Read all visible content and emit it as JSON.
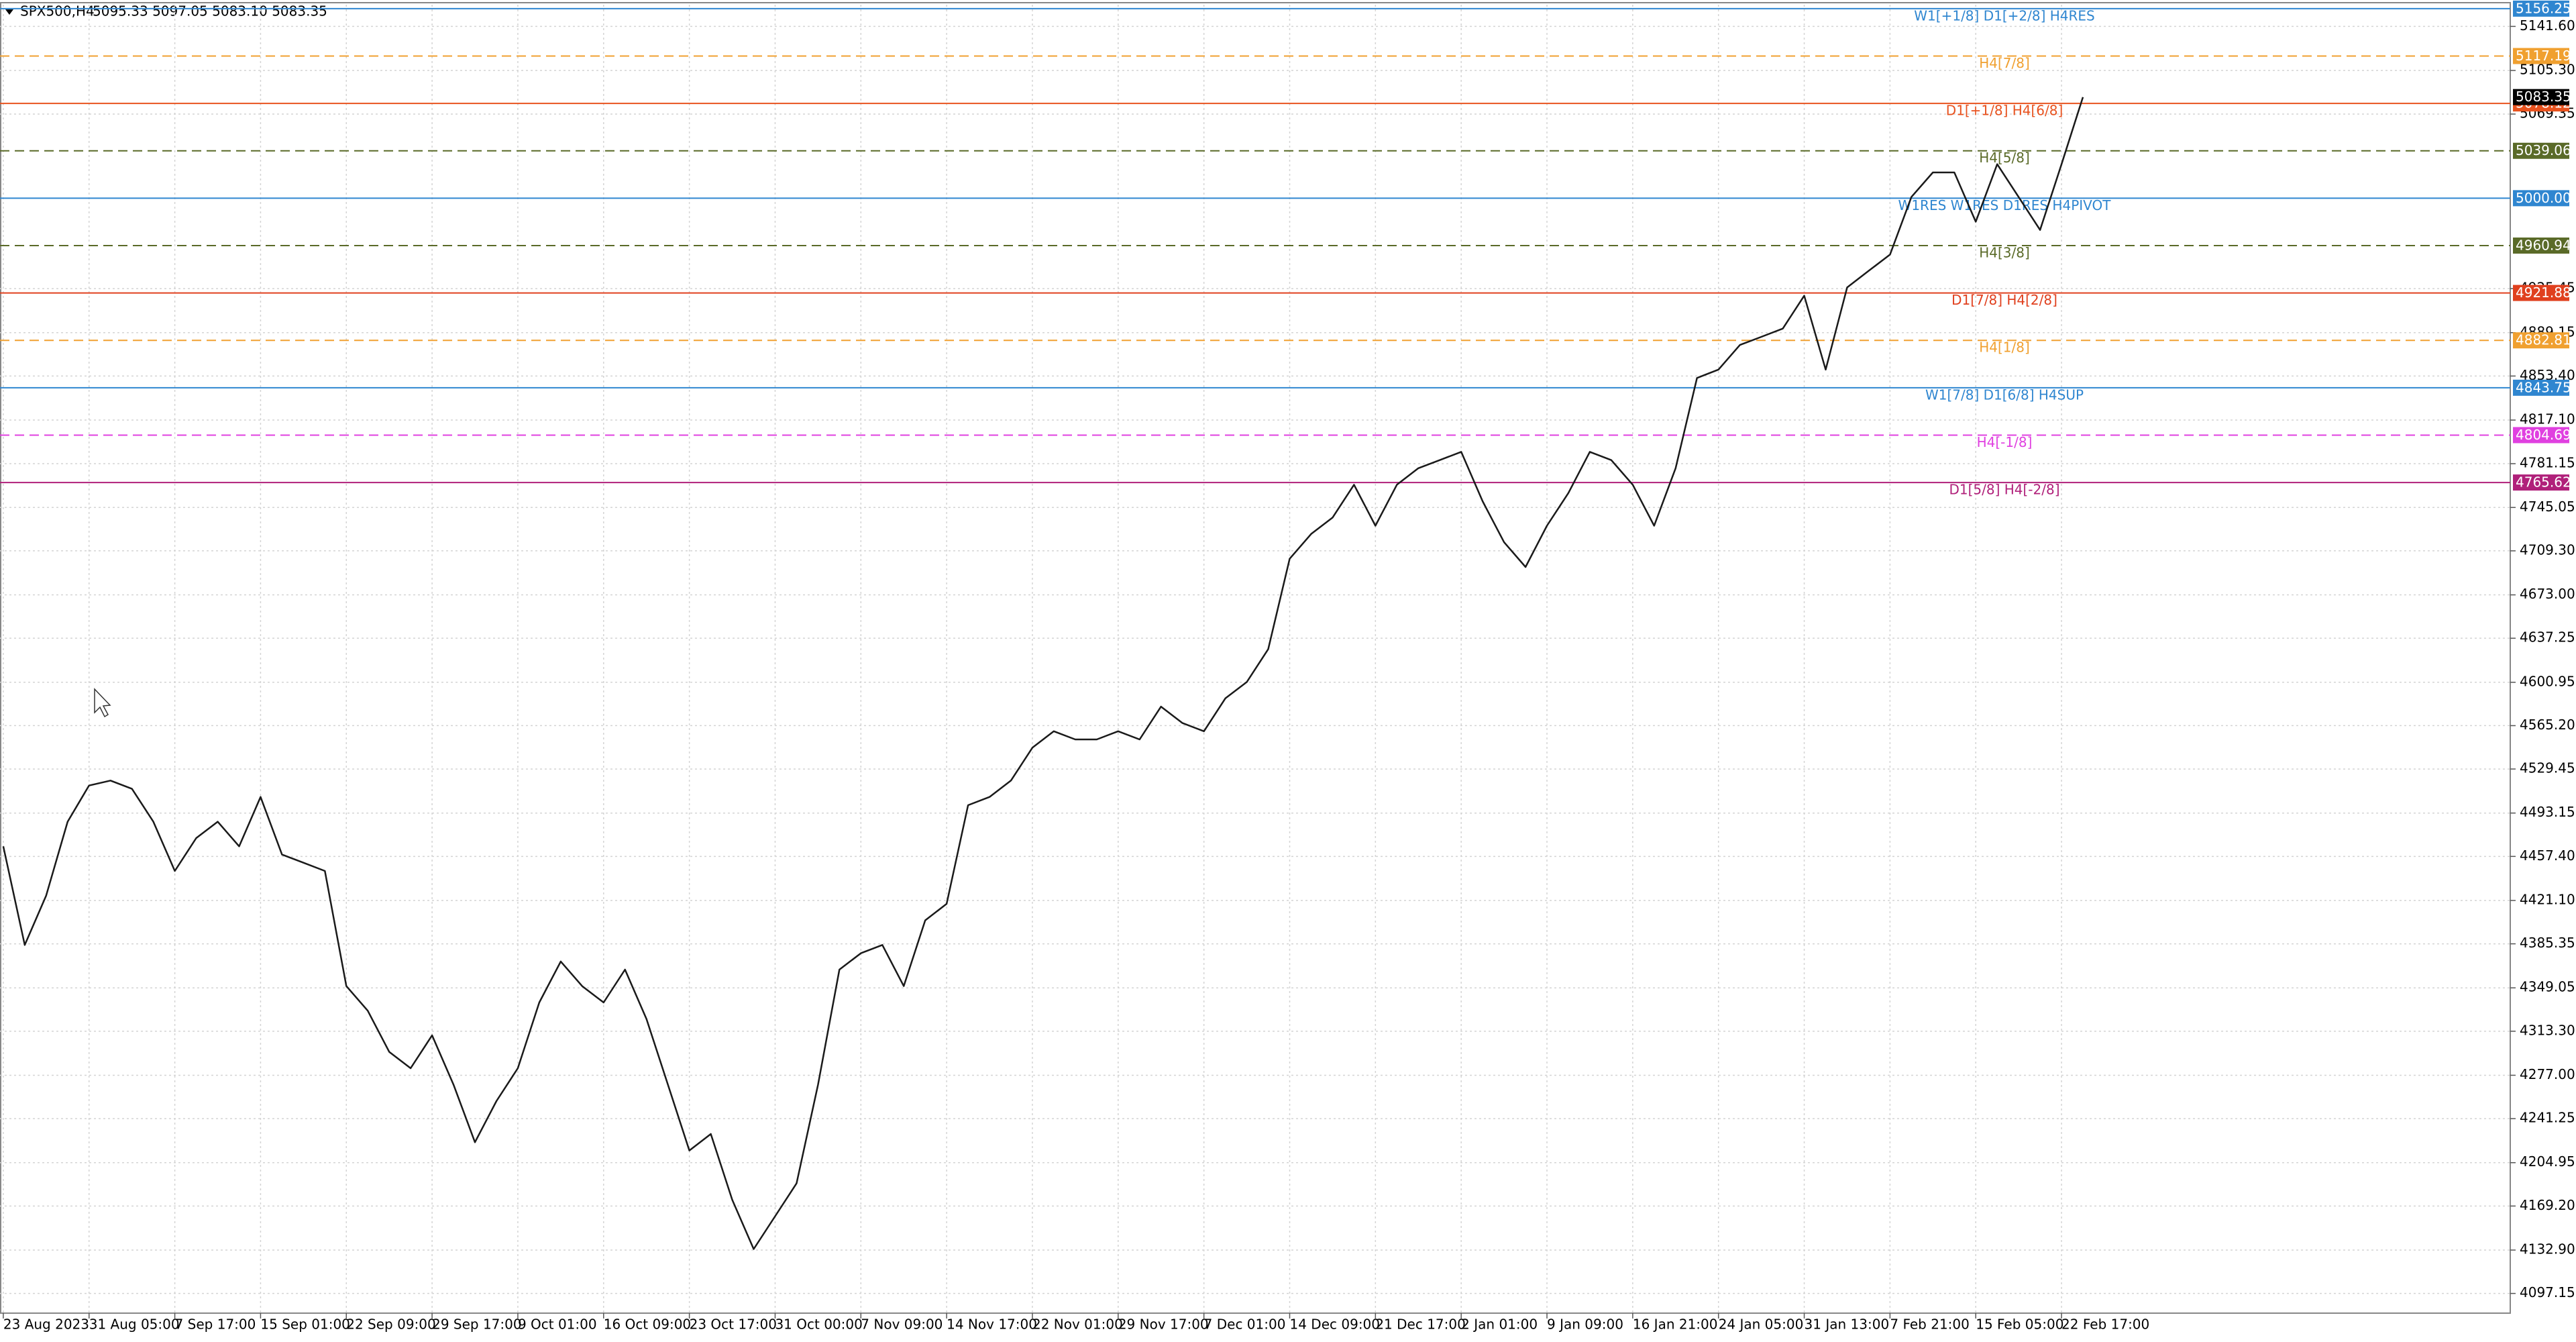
{
  "header": {
    "symbol": "SPX500,H4",
    "ohlc": "5095.33 5097.05 5083.10 5083.35"
  },
  "chart_data": {
    "type": "line",
    "color": "#1a1a1a",
    "grid": true,
    "categories": [
      "23 Aug 2023",
      null,
      null,
      null,
      "31 Aug 05:00",
      null,
      null,
      null,
      "7 Sep 17:00",
      null,
      null,
      null,
      "15 Sep 01:00",
      null,
      null,
      null,
      "22 Sep 09:00",
      null,
      null,
      null,
      "29 Sep 17:00",
      null,
      null,
      null,
      "9 Oct 01:00",
      null,
      null,
      null,
      "16 Oct 09:00",
      null,
      null,
      null,
      "23 Oct 17:00",
      null,
      null,
      null,
      "31 Oct 00:00",
      null,
      null,
      null,
      "7 Nov 09:00",
      null,
      null,
      null,
      "14 Nov 17:00",
      null,
      null,
      null,
      "22 Nov 01:00",
      null,
      null,
      null,
      "29 Nov 17:00",
      null,
      null,
      null,
      "7 Dec 01:00",
      null,
      null,
      null,
      "14 Dec 09:00",
      null,
      null,
      null,
      "21 Dec 17:00",
      null,
      null,
      null,
      "2 Jan 01:00",
      null,
      null,
      null,
      "9 Jan 09:00",
      null,
      null,
      null,
      "16 Jan 21:00",
      null,
      null,
      null,
      "24 Jan 05:00",
      null,
      null,
      null,
      "31 Jan 13:00",
      null,
      null,
      null,
      "7 Feb 21:00",
      null,
      null,
      null,
      "15 Feb 05:00",
      null,
      null,
      null,
      "22 Feb 17:00",
      null
    ],
    "values": [
      4465.7,
      4384.4,
      4425.1,
      4486.0,
      4515.8,
      4519.9,
      4513.1,
      4486.0,
      4445.4,
      4472.5,
      4486.0,
      4465.7,
      4506.4,
      4458.9,
      4452.2,
      4445.4,
      4350.5,
      4330.2,
      4296.3,
      4282.8,
      4309.9,
      4269.2,
      4221.8,
      4255.7,
      4282.8,
      4337.0,
      4370.8,
      4350.5,
      4337.0,
      4364.1,
      4323.4,
      4269.2,
      4215.0,
      4228.6,
      4174.4,
      4133.7,
      4160.8,
      4187.9,
      4269.2,
      4364.1,
      4377.6,
      4384.4,
      4350.5,
      4404.7,
      4418.3,
      4499.6,
      4506.4,
      4519.9,
      4547.0,
      4560.6,
      4553.8,
      4553.8,
      4560.6,
      4553.8,
      4580.9,
      4567.3,
      4560.6,
      4587.7,
      4601.2,
      4628.3,
      4702.8,
      4723.2,
      4736.7,
      4763.8,
      4730.0,
      4763.8,
      4777.4,
      4784.1,
      4790.9,
      4750.2,
      4716.4,
      4696.0,
      4730.0,
      4757.0,
      4790.9,
      4784.1,
      4763.8,
      4730.0,
      4777.4,
      4851.8,
      4858.7,
      4879.0,
      4885.7,
      4892.5,
      4919.6,
      4858.7,
      4926.4,
      4940.0,
      4953.5,
      5001.0,
      5021.2,
      5021.2,
      4980.6,
      5028.0,
      5001.0,
      4973.8,
      5028.0,
      5083.35
    ],
    "ylim": [
      4080.9,
      5159.5
    ],
    "yticks": [
      4097.15,
      {
        "value": 4132.9,
        "label": "4132.90"
      },
      {
        "value": 4169.2,
        "label": "4169.20"
      },
      4204.95,
      4241.25,
      {
        "value": 4277.0,
        "label": "4277.00"
      },
      {
        "value": 4313.3,
        "label": "4313.30"
      },
      4349.05,
      4385.35,
      {
        "value": 4421.1,
        "label": "4421.10"
      },
      {
        "value": 4457.4,
        "label": "4457.40"
      },
      4493.15,
      4529.45,
      {
        "value": 4565.2,
        "label": "4565.20"
      },
      4600.95,
      4637.25,
      {
        "value": 4673.0,
        "label": "4673.00"
      },
      {
        "value": 4709.3,
        "label": "4709.30"
      },
      4745.05,
      4781.15,
      {
        "value": 4817.1,
        "label": "4817.10"
      },
      {
        "value": 4853.4,
        "label": "4853.40"
      },
      4889.15,
      4925.45,
      5069.35,
      {
        "value": 5105.3,
        "label": "5105.30"
      },
      {
        "value": 5141.6,
        "label": "5141.60"
      }
    ],
    "last": 5083.35,
    "levels": [
      {
        "value": 5156.25,
        "text": "W1[+1/8] D1[+2/8] H4RES",
        "color": "#2f86d0",
        "dashed": false
      },
      {
        "value": 5117.19,
        "text": "H4[7/8]",
        "color": "#f0a030",
        "dashed": true
      },
      {
        "value": 5078.12,
        "text": "D1[+1/8] H4[6/8]",
        "color": "#e8521e",
        "dashed": false
      },
      {
        "value": 5039.06,
        "text": "H4[5/8]",
        "color": "#5a6a28",
        "dashed": true
      },
      {
        "value": 5000,
        "value_label": "5000.00",
        "text": "W1RES W1RES D1RES H4PIVOT",
        "color": "#2f86d0",
        "dashed": false
      },
      {
        "value": 4960.94,
        "text": "H4[3/8]",
        "color": "#5a6a28",
        "dashed": true
      },
      {
        "value": 4921.88,
        "text": "D1[7/8] H4[2/8]",
        "color": "#e0401e",
        "dashed": false
      },
      {
        "value": 4882.81,
        "text": "H4[1/8]",
        "color": "#f0a030",
        "dashed": true
      },
      {
        "value": 4843.75,
        "text": "W1[7/8] D1[6/8] H4SUP",
        "color": "#2f86d0",
        "dashed": false
      },
      {
        "value": 4804.69,
        "text": "H4[-1/8]",
        "color": "#e040e0",
        "dashed": true
      },
      {
        "value": 4765.62,
        "text": "D1[5/8] H4[-2/8]",
        "color": "#b0207a",
        "dashed": false
      }
    ]
  }
}
